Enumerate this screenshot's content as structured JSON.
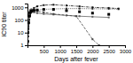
{
  "chart_data": {
    "type": "line",
    "title": "",
    "xlabel": "Days after fever",
    "ylabel": "IC90 titer",
    "log": "y",
    "xlim": [
      0,
      3000
    ],
    "ylim": [
      1,
      2000
    ],
    "xticks": [
      500,
      1000,
      1500,
      2000,
      2500,
      3000
    ],
    "yticks": [
      1,
      10,
      100,
      1000
    ],
    "series": [
      {
        "type": "line",
        "color": "#666666",
        "line_style": "solid",
        "marker": "square",
        "x": [
          5,
          15,
          30,
          50,
          80,
          120,
          200,
          300,
          500,
          800,
          1200,
          1600,
          2000,
          2500
        ],
        "values": [
          2,
          20,
          150,
          400,
          500,
          480,
          400,
          350,
          300,
          270,
          230,
          200,
          180,
          160
        ]
      },
      {
        "type": "line",
        "color": "#444444",
        "line_style": "dashed",
        "marker": "square",
        "x": [
          5,
          15,
          30,
          50,
          80,
          120,
          200,
          300,
          500,
          800,
          1500,
          2000,
          2200
        ],
        "values": [
          2,
          10,
          80,
          300,
          600,
          700,
          600,
          500,
          400,
          300,
          200,
          3,
          1
        ]
      },
      {
        "type": "line",
        "color": "#333333",
        "line_style": "dotted",
        "marker": "square",
        "x": [
          5,
          15,
          30,
          50,
          80,
          120,
          200,
          300,
          500,
          800,
          1200,
          1600,
          2000,
          2500,
          2800
        ],
        "values": [
          2,
          5,
          30,
          100,
          250,
          400,
          500,
          600,
          700,
          750,
          800,
          800,
          780,
          750,
          720
        ]
      },
      {
        "type": "line",
        "color": "#111111",
        "line_style": "dashdot",
        "marker": "square",
        "x": [
          5,
          15,
          30,
          50,
          80,
          120,
          200,
          300,
          500,
          800,
          1200,
          1600,
          2000,
          2500,
          2800
        ],
        "values": [
          2,
          5,
          20,
          60,
          200,
          500,
          900,
          1200,
          1500,
          1600,
          1400,
          1200,
          1000,
          900,
          800
        ]
      },
      {
        "type": "scatter",
        "color": "#000000",
        "line_style": "none",
        "marker": "square",
        "x": [
          5,
          15,
          30,
          50,
          80,
          120,
          200,
          300,
          500,
          800,
          1200,
          1600,
          2000,
          2500
        ],
        "values": [
          2,
          10,
          60,
          200,
          380,
          500,
          580,
          620,
          680,
          680,
          550,
          450,
          350,
          280
        ]
      }
    ]
  }
}
